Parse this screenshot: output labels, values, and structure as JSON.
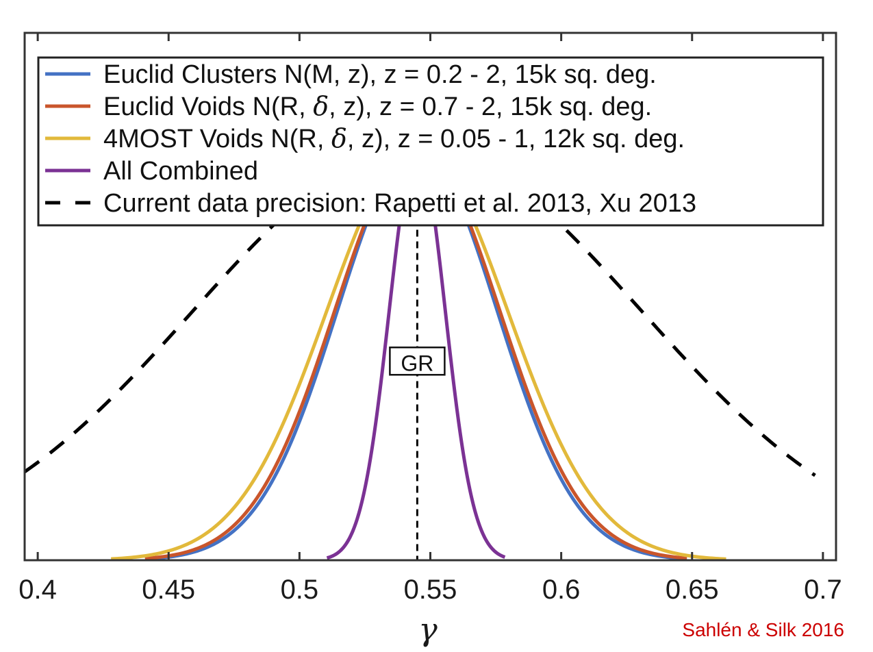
{
  "chart_data": {
    "type": "line",
    "title": "",
    "xlabel": "γ",
    "ylabel": "",
    "xlim": [
      0.395,
      0.705
    ],
    "ylim": [
      0,
      1.28
    ],
    "xticks": [
      0.4,
      0.45,
      0.5,
      0.55,
      0.6,
      0.65,
      0.7
    ],
    "xtick_labels": [
      "0.4",
      "0.45",
      "0.5",
      "0.55",
      "0.6",
      "0.65",
      "0.7"
    ],
    "grid": false,
    "legend_position": "top",
    "series": [
      {
        "name": "Euclid Clusters N(M, z), z = 0.2 - 2, 15k sq. deg.",
        "legend_parts": [
          "Euclid Clusters N(M, z), z = 0.2 - 2, 15k sq. deg."
        ],
        "color": "#4472C4",
        "style": "solid",
        "mu": 0.545,
        "sigma": 0.0305,
        "x_range": [
          0.441,
          0.648
        ]
      },
      {
        "name": "Euclid Voids N(R, δ, z), z = 0.7 - 2, 15k sq. deg.",
        "legend_parts": [
          "Euclid Voids N(R, ",
          "δ",
          ", z), z = 0.7 - 2, 15k sq. deg."
        ],
        "color": "#C9552B",
        "style": "solid",
        "mu": 0.545,
        "sigma": 0.0315,
        "x_range": [
          0.441,
          0.648
        ]
      },
      {
        "name": "4MOST Voids N(R, δ, z), z = 0.05 - 1, 12k sq. deg.",
        "legend_parts": [
          "4MOST Voids N(R, ",
          "δ",
          ", z), z = 0.05 - 1, 12k sq. deg."
        ],
        "color": "#E2B93B",
        "style": "solid",
        "mu": 0.545,
        "sigma": 0.0345,
        "x_range": [
          0.428,
          0.663
        ]
      },
      {
        "name": "All Combined",
        "legend_parts": [
          "All Combined"
        ],
        "color": "#7B3294",
        "style": "solid",
        "mu": 0.545,
        "sigma": 0.0107,
        "x_range": [
          0.5105,
          0.5785
        ]
      },
      {
        "name": "Current data precision: Rapetti et al. 2013, Xu 2013",
        "legend_parts": [
          "Current data precision: Rapetti et al. 2013, Xu 2013"
        ],
        "color": "#000000",
        "style": "dashed",
        "mu": 0.545,
        "sigma": 0.0855,
        "x_range": [
          0.395,
          0.697
        ]
      }
    ],
    "annotations": [
      {
        "text": "GR",
        "x": 0.545,
        "y": 0.48,
        "boxed": true
      },
      {
        "text": "Sahlén & Silk 2016",
        "color": "#CC0000",
        "position": "bottom-right"
      }
    ],
    "reference_lines": [
      {
        "type": "vertical",
        "x": 0.545,
        "style": "dashed",
        "color": "#000000"
      }
    ]
  }
}
